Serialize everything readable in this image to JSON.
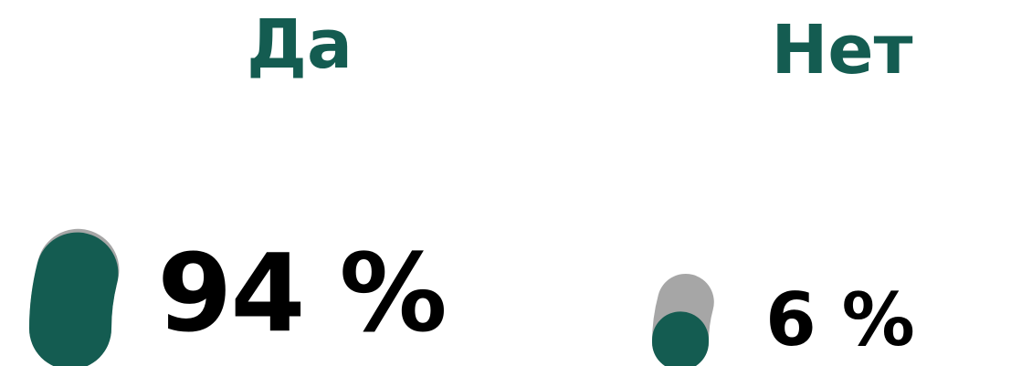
{
  "chart_data": [
    {
      "type": "gauge",
      "title": "Да",
      "value": 94,
      "value_label": "94 %",
      "max": 100
    },
    {
      "type": "gauge",
      "title": "Нет",
      "value": 6,
      "value_label": "6 %",
      "max": 100
    }
  ],
  "colors": {
    "fill": "#145c51",
    "track": "#a6a6a6",
    "title": "#145c51",
    "value_text": "#000000"
  }
}
